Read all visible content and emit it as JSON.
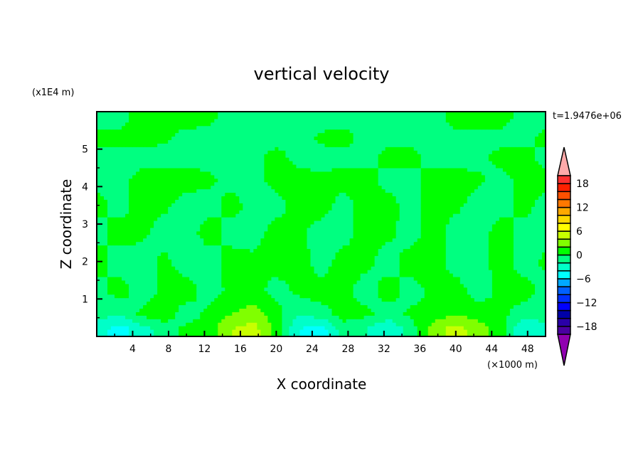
{
  "chart_data": {
    "type": "heatmap",
    "title": "vertical velocity",
    "xlabel": "X coordinate",
    "ylabel": "Z coordinate",
    "x_unit": "(×1000 m)",
    "y_unit": "(x1E4 m)",
    "time_label": "t=1.9476e+06",
    "xlim": [
      0,
      50
    ],
    "ylim": [
      0,
      6
    ],
    "x_ticks": [
      4,
      8,
      12,
      16,
      20,
      24,
      28,
      32,
      36,
      40,
      44,
      48
    ],
    "y_ticks": [
      1,
      2,
      3,
      4,
      5
    ],
    "colorbar": {
      "levels": [
        -20,
        -18,
        -16,
        -14,
        -12,
        -10,
        -8,
        -6,
        -4,
        -2,
        0,
        2,
        4,
        6,
        8,
        10,
        12,
        14,
        16,
        18,
        20
      ],
      "tick_labels": [
        "18",
        "12",
        "6",
        "0",
        "−6",
        "−12",
        "−18"
      ],
      "tick_values": [
        18,
        12,
        6,
        0,
        -6,
        -12,
        -18
      ],
      "colors": [
        "#4a00a0",
        "#2a00a8",
        "#0000a8",
        "#0000ff",
        "#0030ff",
        "#0060ff",
        "#00a8ff",
        "#00ffff",
        "#00ffc8",
        "#00ff80",
        "#00ff00",
        "#80ff00",
        "#c8ff00",
        "#ffff00",
        "#ffd800",
        "#ffa800",
        "#ff7800",
        "#ff5000",
        "#ff2000",
        "#ff3030"
      ],
      "over_color": "#ffaaaa",
      "under_color": "#9000b0"
    },
    "grid_x": [
      0,
      2.5,
      5,
      7.5,
      10,
      12.5,
      15,
      17.5,
      20,
      22.5,
      25,
      27.5,
      30,
      32.5,
      35,
      37.5,
      40,
      42.5,
      45,
      47.5,
      50
    ],
    "grid_z": [
      0.2,
      0.6,
      1.2,
      2,
      2.8,
      3.5,
      4.2,
      4.8,
      5.3,
      5.8
    ],
    "values": [
      [
        -3,
        -5,
        -3,
        -1,
        0.5,
        1,
        4,
        5,
        1,
        -4,
        -5,
        -1,
        -2,
        -4,
        -1,
        3,
        5,
        3,
        1,
        -4,
        -3
      ],
      [
        -1,
        -2,
        0.5,
        1,
        -1,
        0.5,
        2,
        3,
        1,
        -2,
        -1,
        1,
        0.5,
        -1,
        0.5,
        1,
        2,
        1,
        0.5,
        -1,
        -1
      ],
      [
        -1,
        1,
        -1,
        0.5,
        1,
        -1,
        0.5,
        1,
        -1,
        0.5,
        1,
        0.5,
        -1,
        1,
        -1,
        0.5,
        1,
        -1,
        0.5,
        1,
        -1
      ],
      [
        1,
        -1,
        -1,
        0.5,
        -1,
        -1,
        1,
        0.5,
        1,
        1,
        -1,
        1,
        0.5,
        -1,
        1,
        1,
        -1,
        -1,
        1,
        -1,
        0.5
      ],
      [
        -1,
        1,
        0.5,
        -1,
        -1,
        1,
        -1,
        -1,
        1,
        0.5,
        -1,
        -1,
        1,
        0.5,
        -1,
        1,
        -1,
        -1,
        1,
        -1,
        -1
      ],
      [
        1,
        -1,
        1,
        0.5,
        -1,
        -1,
        1,
        -1,
        -1,
        1,
        1,
        -1,
        1,
        1,
        -1,
        1,
        0.5,
        -1,
        -1,
        1,
        -1
      ],
      [
        -1,
        -1,
        1,
        1,
        1,
        0.5,
        -1,
        -1,
        1,
        1,
        0.5,
        1,
        1,
        -1,
        -1,
        1,
        1,
        0.5,
        -1,
        1,
        1
      ],
      [
        -1,
        -1,
        -1,
        -1,
        -1,
        -1,
        -1,
        -1,
        1,
        -1,
        -1,
        -1,
        -1,
        1,
        1,
        -1,
        -1,
        -1,
        1,
        1,
        -1
      ],
      [
        1,
        1,
        1,
        0.5,
        -1,
        -1,
        -1,
        -1,
        -1,
        -1,
        0.5,
        1,
        -1,
        -1,
        -1,
        -1,
        -1,
        -1,
        -1,
        -1,
        1
      ],
      [
        -1,
        -1,
        1,
        1,
        1,
        0.5,
        -1,
        -1,
        -1,
        -1,
        -1,
        -1,
        -1,
        -1,
        -1,
        -1,
        1,
        1,
        1,
        -1,
        -1
      ]
    ]
  }
}
